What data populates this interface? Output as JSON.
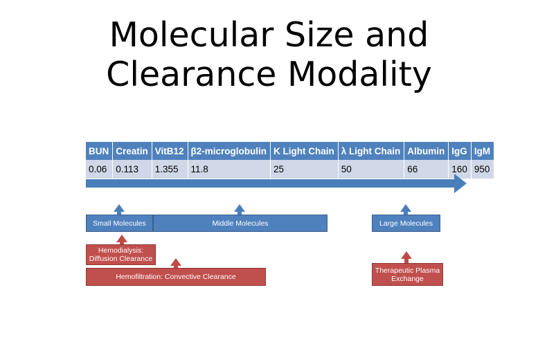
{
  "title_line1": "Molecular Size and",
  "title_line2": "Clearance Modality",
  "table": {
    "headers": [
      "BUN",
      "Creatin",
      "VitB12",
      "β2-microglobulin",
      "K Light Chain",
      "λ Light Chain",
      "Albumin",
      "IgG",
      "IgM"
    ],
    "values": [
      "0.06",
      "0.113",
      "1.355",
      "11.8",
      "25",
      "50",
      "66",
      "160",
      "950"
    ]
  },
  "boxes": {
    "small_molecules": "Small Molecules",
    "middle_molecules": "Middle Molecules",
    "large_molecules": "Large Molecules",
    "hemodialysis_line1": "Hemodialysis:",
    "hemodialysis_line2": "Diffusion Clearance",
    "hemofiltration": "Hemofiltration: Convective Clearance",
    "plasma_exchange_line1": "Therapeutic Plasma",
    "plasma_exchange_line2": "Exchange"
  },
  "colors": {
    "blue": "#4f81bd",
    "red": "#c0504d",
    "table_body": "#d0d8e8"
  }
}
